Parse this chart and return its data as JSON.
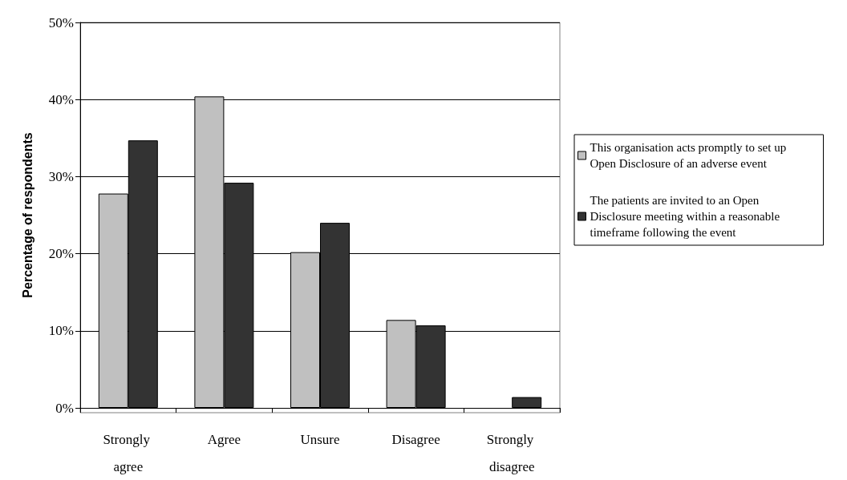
{
  "chart_data": {
    "type": "bar",
    "ylabel": "Percentage of respondents",
    "categories": [
      "Strongly agree",
      "Agree",
      "Unsure",
      "Disagree",
      "Strongly disagree"
    ],
    "series": [
      {
        "name": "This organisation acts promptly to set up Open Disclosure of an adverse event",
        "color": "#c0c0c0",
        "values": [
          27.8,
          40.4,
          20.2,
          11.4,
          0
        ]
      },
      {
        "name": "The patients are invited to an Open Disclosure meeting within a reasonable timeframe following the event",
        "color": "#333333",
        "values": [
          34.7,
          29.2,
          24.0,
          10.7,
          1.4
        ]
      }
    ],
    "ylim": [
      0,
      50
    ],
    "yticks": [
      {
        "value": 0,
        "label": "0%"
      },
      {
        "value": 10,
        "label": "10%"
      },
      {
        "value": 20,
        "label": "20%"
      },
      {
        "value": 30,
        "label": "30%"
      },
      {
        "value": 40,
        "label": "40%"
      },
      {
        "value": 50,
        "label": "50%"
      }
    ],
    "grid": "y",
    "legend": "right"
  }
}
